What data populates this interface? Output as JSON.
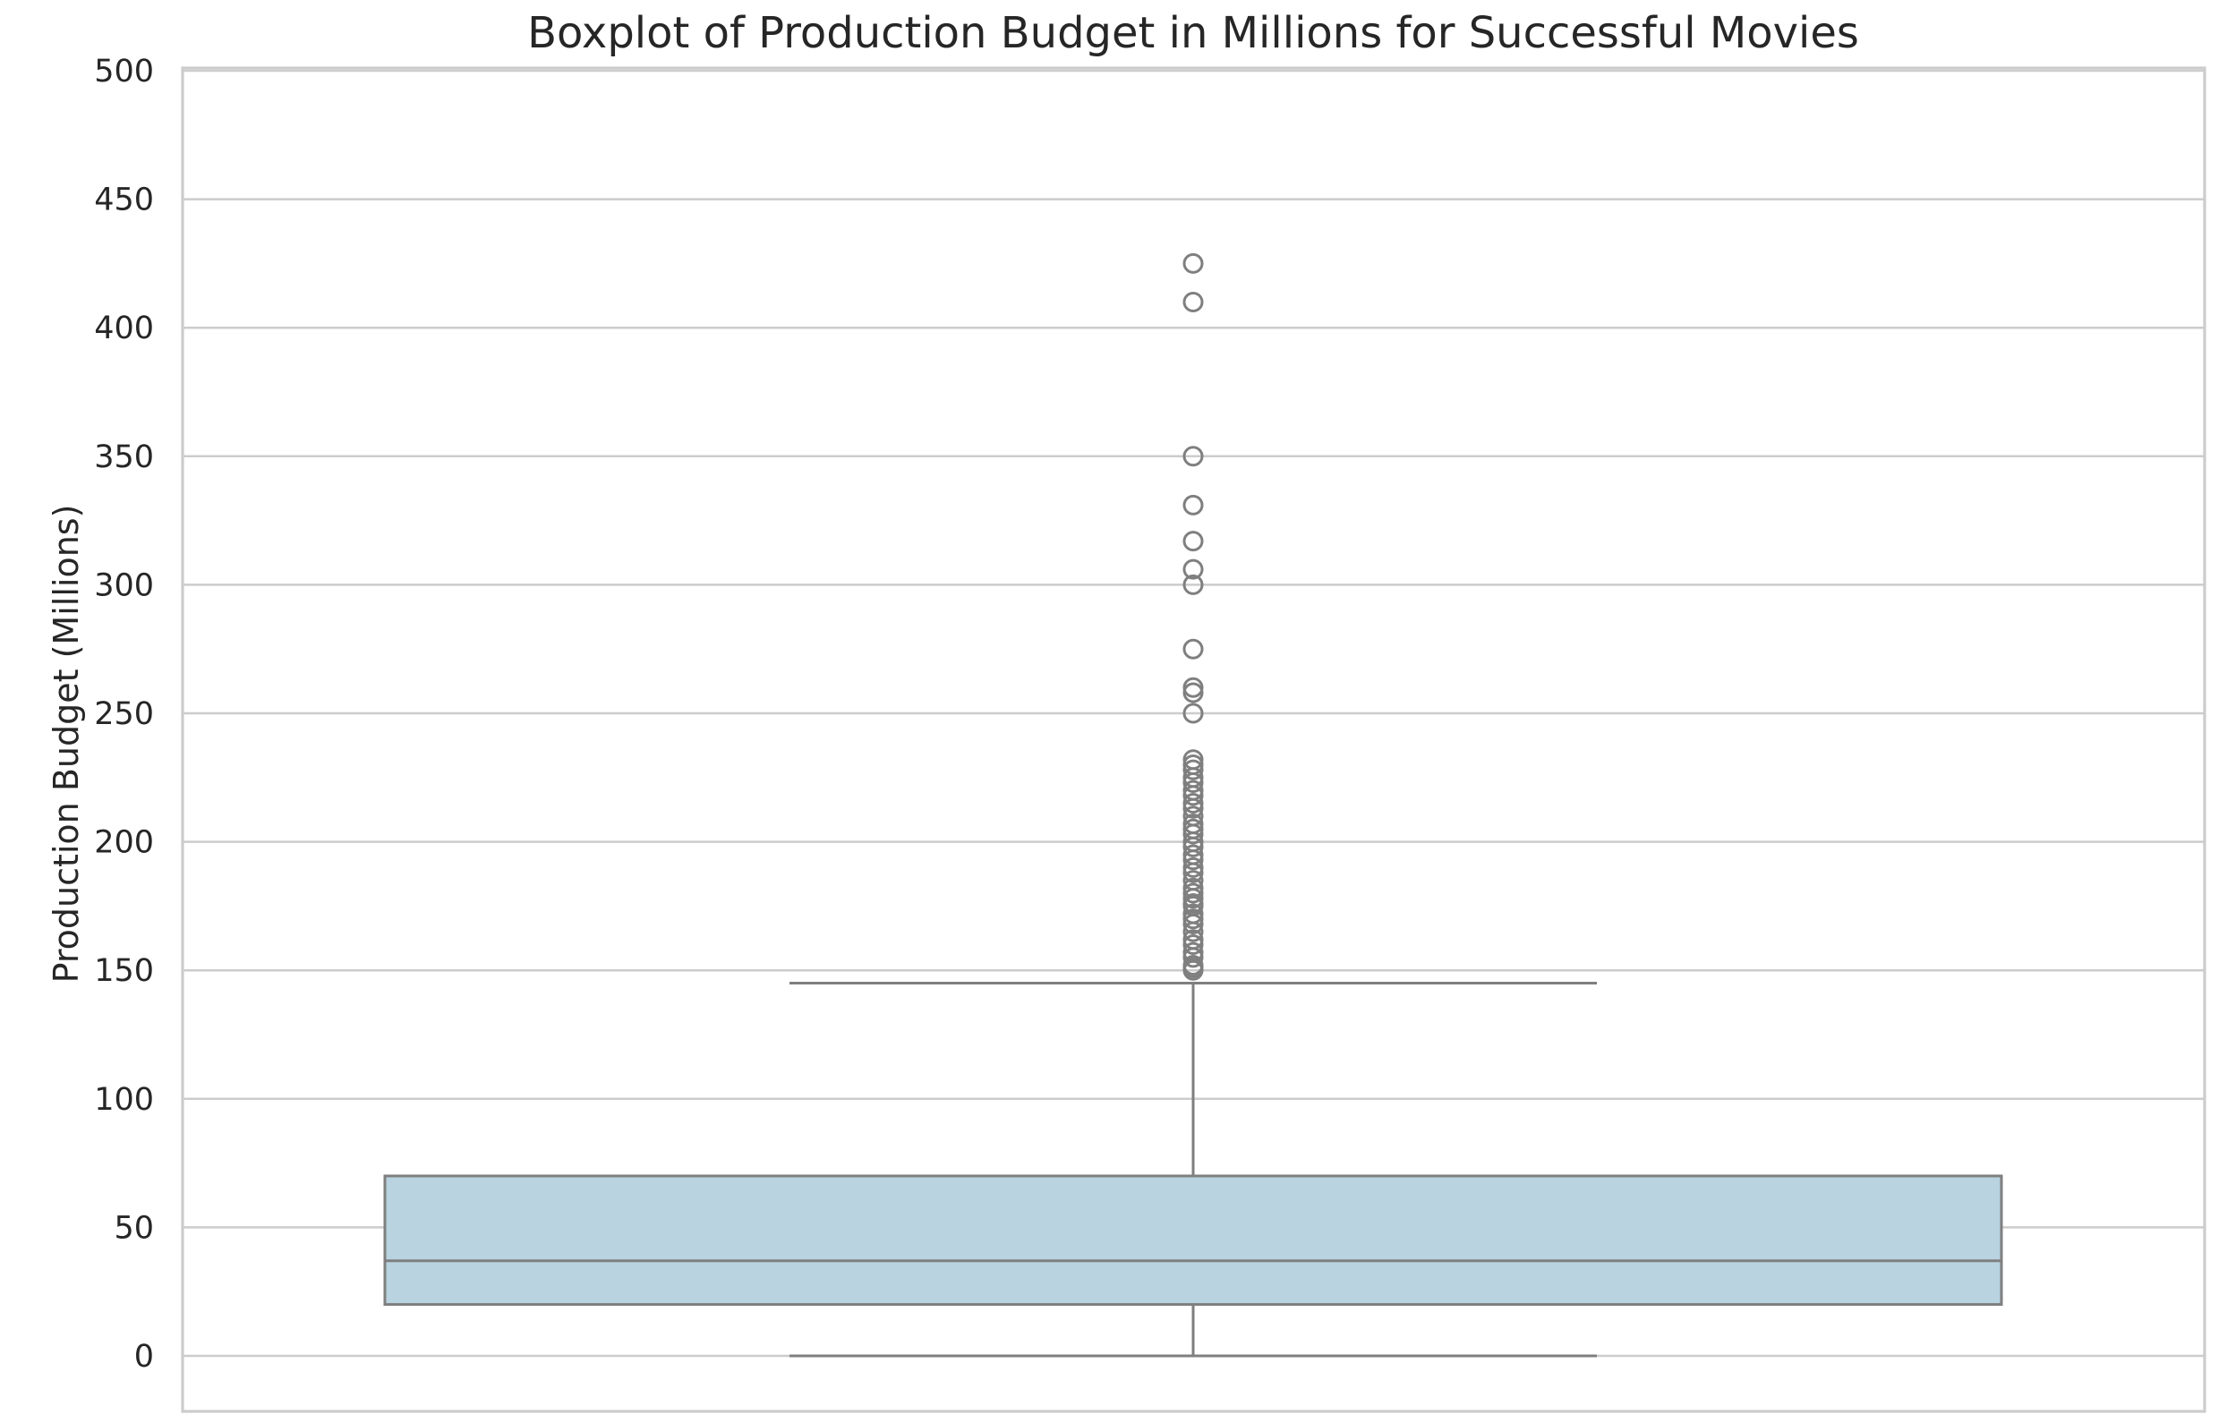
{
  "chart_data": {
    "type": "box",
    "title": "Boxplot of Production Budget in Millions for Successful Movies",
    "xlabel": "",
    "ylabel": "Production Budget (Millions)",
    "ylim": [
      -20,
      520
    ],
    "yticks": [
      0,
      50,
      100,
      150,
      200,
      250,
      300,
      350,
      400,
      450,
      500
    ],
    "ytick_labels": [
      "0",
      "50",
      "100",
      "150",
      "200",
      "250",
      "300",
      "350",
      "400",
      "450",
      "500"
    ],
    "grid": true,
    "box_color": "#b9d3e0",
    "line_color": "#7f7f7f",
    "box": {
      "whisker_low": 0,
      "q1": 20,
      "median": 37,
      "q3": 70,
      "whisker_high": 145
    },
    "outliers": [
      150,
      151,
      152,
      155,
      157,
      160,
      162,
      165,
      168,
      170,
      172,
      175,
      176,
      178,
      180,
      182,
      185,
      188,
      190,
      193,
      195,
      198,
      200,
      203,
      205,
      207,
      210,
      213,
      215,
      218,
      220,
      223,
      225,
      228,
      230,
      232,
      250,
      258,
      260,
      275,
      300,
      306,
      317,
      331,
      350,
      410,
      425
    ]
  }
}
